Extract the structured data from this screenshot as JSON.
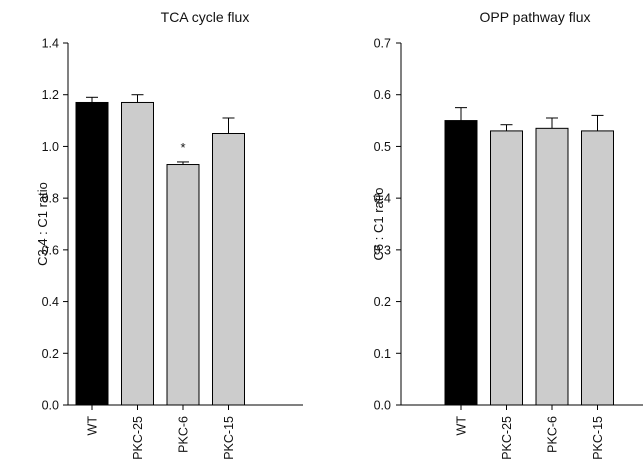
{
  "colors": {
    "wt_bar": "#000000",
    "pkc_bar": "#cccccc",
    "axis": "#000000"
  },
  "chart_data": [
    {
      "type": "bar",
      "title": "TCA cycle flux",
      "xlabel": "",
      "ylabel": "C3,4 : C1 ratio",
      "categories": [
        "WT",
        "PKC-25",
        "PKC-6",
        "PKC-15"
      ],
      "values": [
        1.17,
        1.17,
        0.93,
        1.05
      ],
      "errors": [
        0.02,
        0.03,
        0.01,
        0.06
      ],
      "annotations": [
        "",
        "",
        "*",
        ""
      ],
      "ylim": [
        0,
        1.4
      ],
      "yticks": [
        "0.0",
        "0.2",
        "0.4",
        "0.6",
        "0.8",
        "1.0",
        "1.2",
        "1.4"
      ],
      "grid": false
    },
    {
      "type": "bar",
      "title": "OPP pathway flux",
      "xlabel": "",
      "ylabel": "C6 : C1 ratio",
      "categories": [
        "WT",
        "PKC-25",
        "PKC-6",
        "PKC-15"
      ],
      "values": [
        0.55,
        0.53,
        0.535,
        0.53
      ],
      "errors": [
        0.025,
        0.012,
        0.02,
        0.03
      ],
      "annotations": [
        "",
        "",
        "",
        ""
      ],
      "ylim": [
        0,
        0.7
      ],
      "yticks": [
        "0.0",
        "0.1",
        "0.2",
        "0.3",
        "0.4",
        "0.5",
        "0.6",
        "0.7"
      ],
      "grid": false
    }
  ]
}
